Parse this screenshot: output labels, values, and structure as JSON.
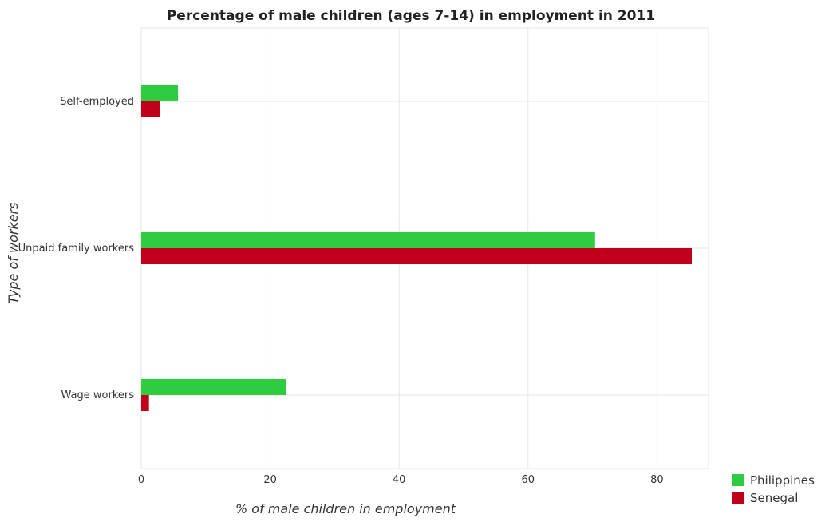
{
  "chart_data": {
    "type": "bar",
    "orientation": "horizontal",
    "title": "Percentage of male children (ages 7-14) in employment in 2011",
    "xlabel": "% of male children in employment",
    "ylabel": "Type of workers",
    "categories": [
      "Self-employed",
      "Unpaid family workers",
      "Wage workers"
    ],
    "series": [
      {
        "name": "Philippines",
        "color": "#2ecc40",
        "values": [
          5.7,
          70.4,
          22.5
        ]
      },
      {
        "name": "Senegal",
        "color": "#c0001a",
        "values": [
          2.9,
          85.4,
          1.2
        ]
      }
    ],
    "xlim": [
      0,
      88
    ],
    "xticks": [
      0,
      20,
      40,
      60,
      80
    ],
    "grid": true,
    "legend_position": "bottom-right"
  }
}
